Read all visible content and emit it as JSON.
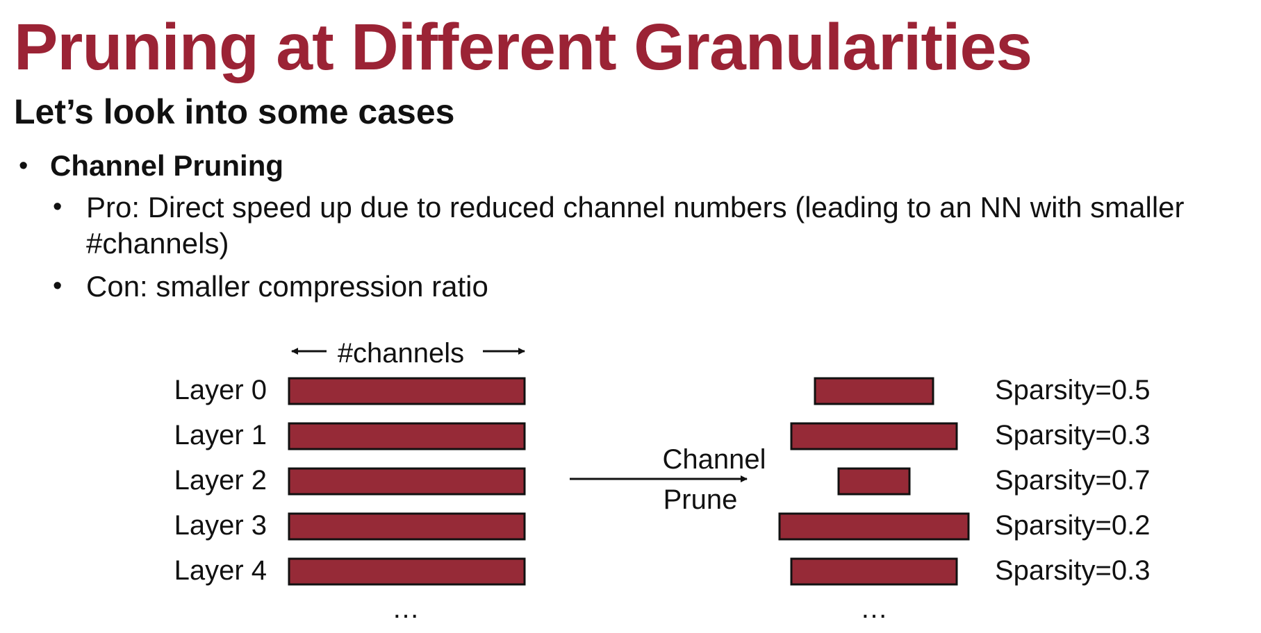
{
  "slide": {
    "title": "Pruning at Different Granularities",
    "subtitle": "Let’s look into some cases"
  },
  "bullets": {
    "main": "Channel Pruning",
    "pro_line1": "Pro: Direct speed up due to reduced channel numbers (leading to an NN with smaller",
    "pro_line2": "#channels)",
    "con": "Con: smaller compression ratio"
  },
  "diagram": {
    "channels_label": "#channels",
    "arrow_label_line1": "Channel",
    "arrow_label_line2": "Prune",
    "ellipsis": "…",
    "bar_color": "#962a37",
    "layers": [
      {
        "name": "Layer 0",
        "sparsity": 0.5,
        "sparsity_label": "Sparsity=0.5"
      },
      {
        "name": "Layer 1",
        "sparsity": 0.3,
        "sparsity_label": "Sparsity=0.3"
      },
      {
        "name": "Layer 2",
        "sparsity": 0.7,
        "sparsity_label": "Sparsity=0.7"
      },
      {
        "name": "Layer 3",
        "sparsity": 0.2,
        "sparsity_label": "Sparsity=0.2"
      },
      {
        "name": "Layer 4",
        "sparsity": 0.3,
        "sparsity_label": "Sparsity=0.3"
      }
    ]
  }
}
